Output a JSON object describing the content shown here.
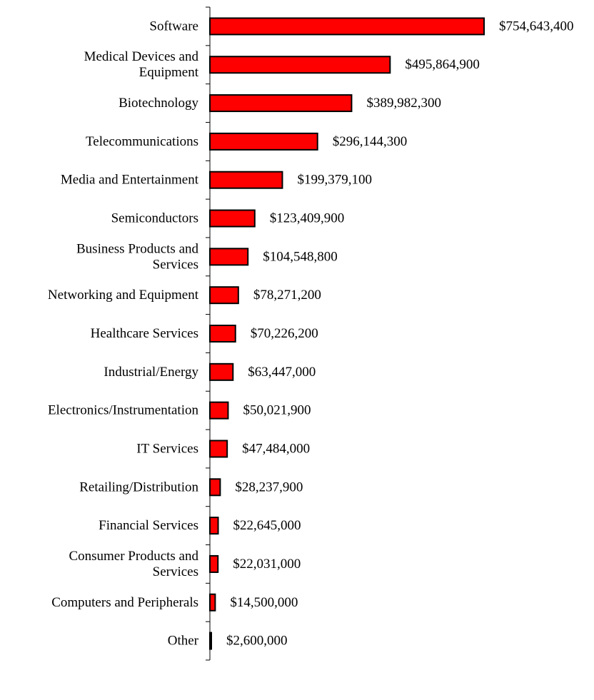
{
  "chart_data": {
    "type": "bar",
    "orientation": "horizontal",
    "title": "",
    "xlabel": "",
    "ylabel": "",
    "categories": [
      [
        "Software"
      ],
      [
        "Medical Devices and",
        "Equipment"
      ],
      [
        "Biotechnology"
      ],
      [
        "Telecommunications"
      ],
      [
        "Media and Entertainment"
      ],
      [
        "Semiconductors"
      ],
      [
        "Business Products and",
        "Services"
      ],
      [
        "Networking and Equipment"
      ],
      [
        "Healthcare Services"
      ],
      [
        "Industrial/Energy"
      ],
      [
        "Electronics/Instrumentation"
      ],
      [
        "IT Services"
      ],
      [
        "Retailing/Distribution"
      ],
      [
        "Financial Services"
      ],
      [
        "Consumer Products and",
        "Services"
      ],
      [
        "Computers and Peripherals"
      ],
      [
        "Other"
      ]
    ],
    "values": [
      754643400,
      495864900,
      389982300,
      296144300,
      199379100,
      123409900,
      104548800,
      78271200,
      70226200,
      63447000,
      50021900,
      47484000,
      28237900,
      22645000,
      22031000,
      14500000,
      2600000
    ],
    "value_labels": [
      "$754,643,400",
      "$495,864,900",
      "$389,982,300",
      "$296,144,300",
      "$199,379,100",
      "$123,409,900",
      "$104,548,800",
      "$78,271,200",
      "$70,226,200",
      "$63,447,000",
      "$50,021,900",
      "$47,484,000",
      "$28,237,900",
      "$22,645,000",
      "$22,031,000",
      "$14,500,000",
      "$2,600,000"
    ],
    "xlim": [
      0,
      754643400
    ],
    "grid": false,
    "legend": "none",
    "colors": {
      "bar_fill": "#ff0000",
      "bar_stroke": "#000000",
      "axis": "#000000",
      "text": "#000000"
    }
  }
}
